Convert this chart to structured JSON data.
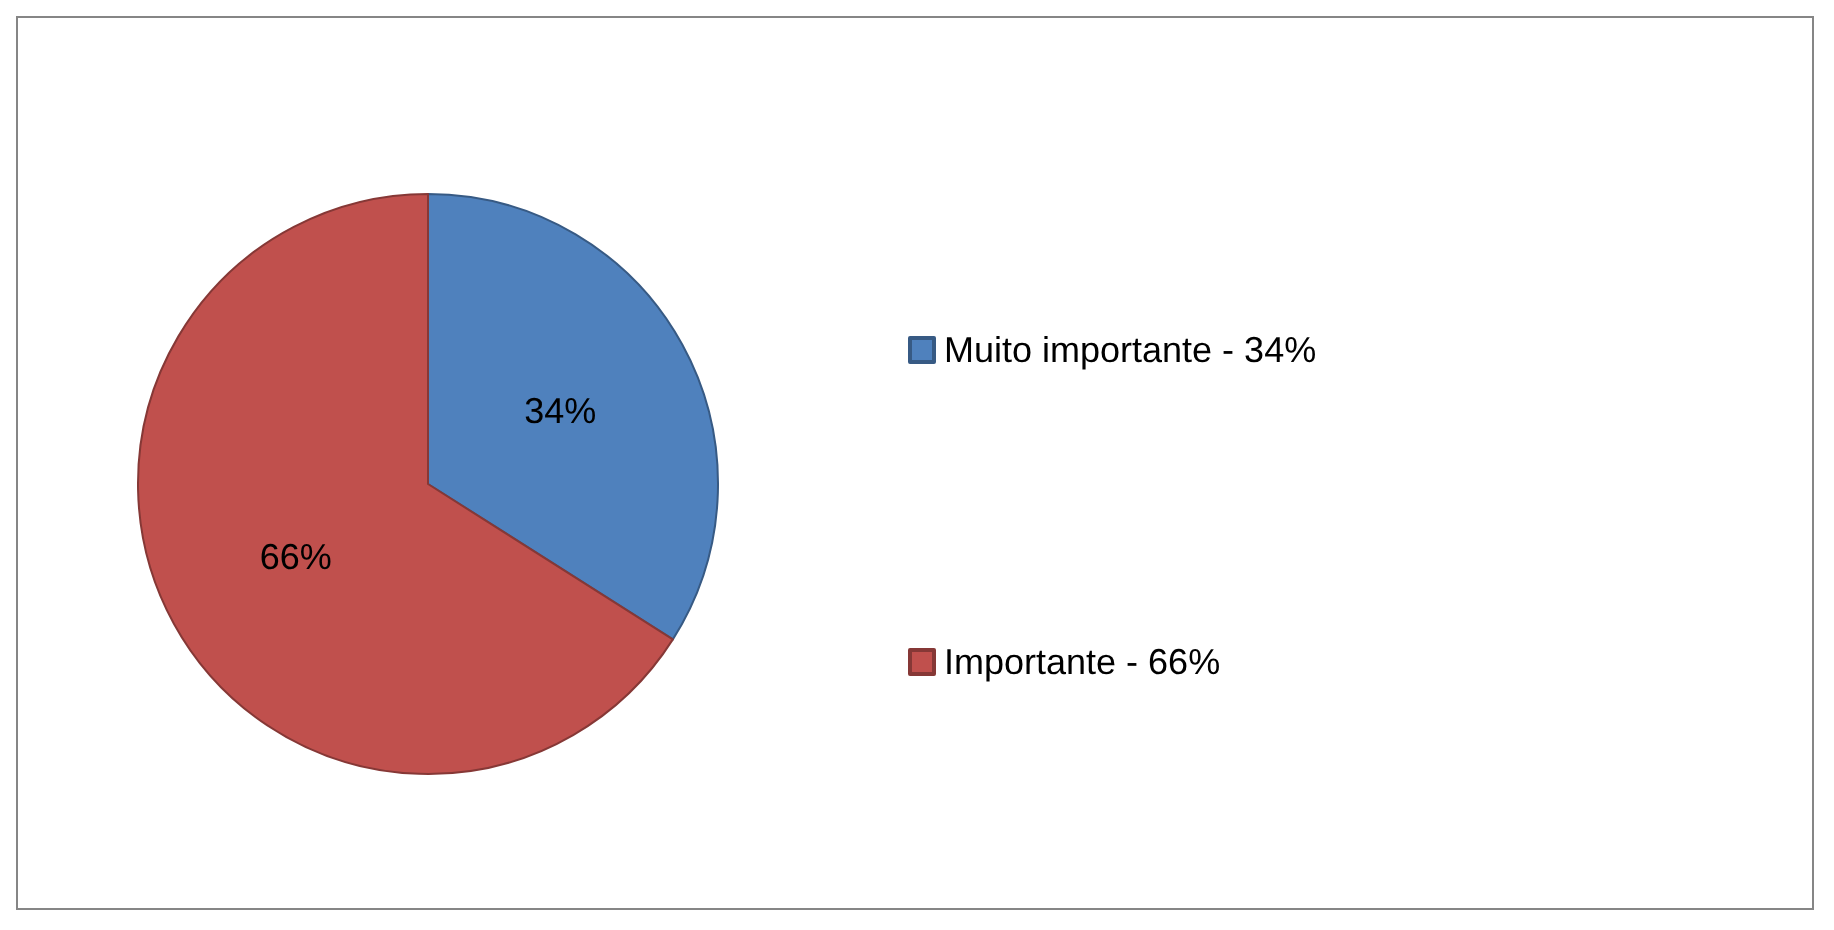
{
  "chart_data": {
    "type": "pie",
    "categories": [
      "Muito importante - 34%",
      "Importante - 66%"
    ],
    "values": [
      34,
      66
    ],
    "colors": [
      "#4f81bd",
      "#c0504d"
    ],
    "value_labels": [
      "34%",
      "66%"
    ],
    "legend": "right"
  }
}
